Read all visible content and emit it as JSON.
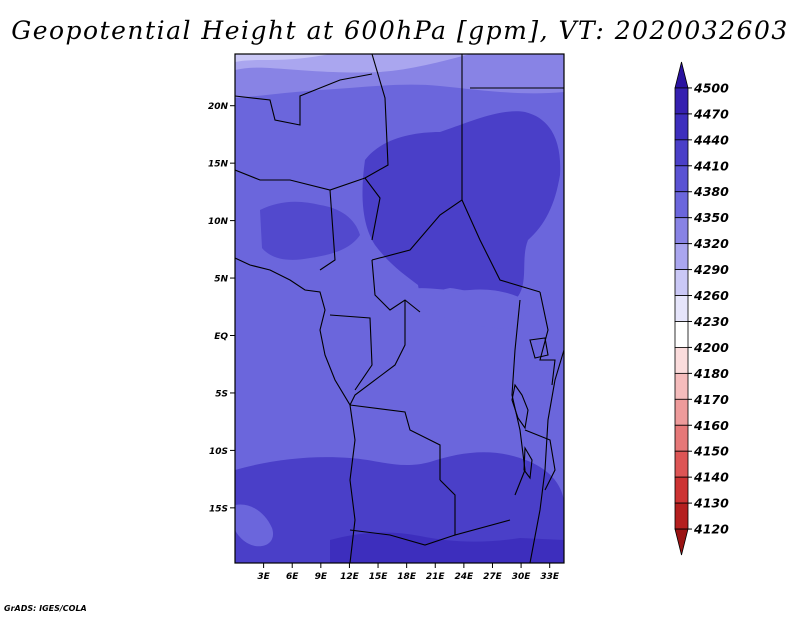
{
  "title": "Geopotential Height at 600hPa [gpm], VT: 2020032603",
  "credit": "GrADS: IGES/COLA",
  "map": {
    "lat_labels": [
      "20N",
      "15N",
      "10N",
      "5N",
      "EQ",
      "5S",
      "10S",
      "15S"
    ],
    "lat_values": [
      20,
      15,
      10,
      5,
      0,
      -5,
      -10,
      -15
    ],
    "lon_labels": [
      "3E",
      "6E",
      "9E",
      "12E",
      "15E",
      "18E",
      "21E",
      "24E",
      "27E",
      "30E",
      "33E"
    ],
    "lon_values": [
      3,
      6,
      9,
      12,
      15,
      18,
      21,
      24,
      27,
      30,
      33
    ],
    "lat_range": [
      -19.8,
      24.5
    ],
    "lon_range": [
      0,
      34.5
    ]
  },
  "colorbar": {
    "levels": [
      "4500",
      "4470",
      "4440",
      "4410",
      "4380",
      "4350",
      "4320",
      "4290",
      "4260",
      "4230",
      "4200",
      "4180",
      "4170",
      "4160",
      "4150",
      "4140",
      "4130",
      "4120"
    ],
    "colors": [
      "#2a12a0",
      "#3520b0",
      "#3d2ebd",
      "#4a3fc8",
      "#5a52d3",
      "#6b66dc",
      "#8883e5",
      "#aaa6ef",
      "#cac8f6",
      "#e6e5fb",
      "#ffffff",
      "#fbdcdc",
      "#f5bcbc",
      "#ee9b9b",
      "#e67878",
      "#dd5555",
      "#cd3333",
      "#b51f1f",
      "#9a1313"
    ]
  },
  "colors": {
    "map_background": "#6b66dc",
    "high_core": "#4a3fc8",
    "low_north": "#8883e5"
  }
}
